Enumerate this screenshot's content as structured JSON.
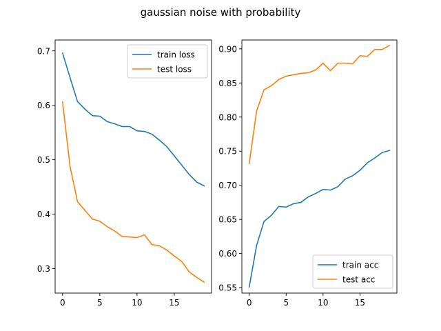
{
  "chart_data": {
    "title": "gaussian noise with probability",
    "subplots": [
      {
        "type": "line",
        "x": [
          0,
          1,
          2,
          3,
          4,
          5,
          6,
          7,
          8,
          9,
          10,
          11,
          12,
          13,
          14,
          15,
          16,
          17,
          18,
          19
        ],
        "xlim": [
          -1.0,
          20.0
        ],
        "ylim": [
          0.255,
          0.72
        ],
        "xticks": [
          0,
          5,
          10,
          15
        ],
        "xtick_labels": [
          "0",
          "5",
          "10",
          "15"
        ],
        "yticks": [
          0.3,
          0.4,
          0.5,
          0.6,
          0.7
        ],
        "ytick_labels": [
          "0.3",
          "0.4",
          "0.5",
          "0.6",
          "0.7"
        ],
        "legend_position": "upper right",
        "series": [
          {
            "name": "train loss",
            "color": "#1f77b4",
            "values": [
              0.696,
              0.651,
              0.607,
              0.593,
              0.581,
              0.58,
              0.57,
              0.566,
              0.561,
              0.561,
              0.553,
              0.552,
              0.547,
              0.536,
              0.524,
              0.507,
              0.49,
              0.473,
              0.459,
              0.452
            ]
          },
          {
            "name": "test loss",
            "color": "#ff7f0e",
            "values": [
              0.606,
              0.488,
              0.423,
              0.407,
              0.391,
              0.387,
              0.377,
              0.369,
              0.359,
              0.358,
              0.357,
              0.362,
              0.344,
              0.342,
              0.334,
              0.323,
              0.313,
              0.294,
              0.284,
              0.275
            ]
          }
        ]
      },
      {
        "type": "line",
        "x": [
          0,
          1,
          2,
          3,
          4,
          5,
          6,
          7,
          8,
          9,
          10,
          11,
          12,
          13,
          14,
          15,
          16,
          17,
          18,
          19
        ],
        "xlim": [
          -1.0,
          20.0
        ],
        "ylim": [
          0.542,
          0.913
        ],
        "xticks": [
          0,
          5,
          10,
          15
        ],
        "xtick_labels": [
          "0",
          "5",
          "10",
          "15"
        ],
        "yticks": [
          0.55,
          0.6,
          0.65,
          0.7,
          0.75,
          0.8,
          0.85,
          0.9
        ],
        "ytick_labels": [
          "0.55",
          "0.60",
          "0.65",
          "0.70",
          "0.75",
          "0.80",
          "0.85",
          "0.90"
        ],
        "legend_position": "lower right",
        "series": [
          {
            "name": "train acc",
            "color": "#1f77b4",
            "values": [
              0.551,
              0.612,
              0.647,
              0.656,
              0.669,
              0.668,
              0.673,
              0.675,
              0.683,
              0.688,
              0.694,
              0.693,
              0.698,
              0.709,
              0.714,
              0.722,
              0.733,
              0.74,
              0.748,
              0.751
            ]
          },
          {
            "name": "test acc",
            "color": "#ff7f0e",
            "values": [
              0.732,
              0.809,
              0.84,
              0.846,
              0.855,
              0.86,
              0.862,
              0.864,
              0.865,
              0.869,
              0.879,
              0.868,
              0.879,
              0.879,
              0.878,
              0.89,
              0.889,
              0.899,
              0.899,
              0.905
            ]
          }
        ]
      }
    ]
  }
}
